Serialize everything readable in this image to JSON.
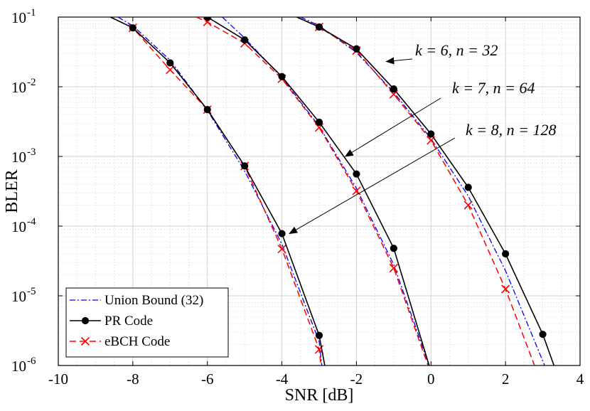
{
  "chart_data": {
    "type": "line",
    "title": "",
    "xlabel": "SNR [dB]",
    "ylabel": "BLER",
    "xlim": [
      -10,
      4
    ],
    "ylim": [
      1e-06,
      0.1
    ],
    "yscale": "log",
    "grid": true,
    "legend_position": "bottom-left",
    "x_ticks": [
      -10,
      -8,
      -6,
      -4,
      -2,
      0,
      2,
      4
    ],
    "x_tick_labels": [
      "-10",
      "-8",
      "-6",
      "-4",
      "-2",
      "0",
      "2",
      "4"
    ],
    "y_tick_labels": [
      {
        "base": "10",
        "exp": "-6"
      },
      {
        "base": "10",
        "exp": "-5"
      },
      {
        "base": "10",
        "exp": "-4"
      },
      {
        "base": "10",
        "exp": "-3"
      },
      {
        "base": "10",
        "exp": "-2"
      },
      {
        "base": "10",
        "exp": "-1"
      }
    ],
    "legend": [
      {
        "label": "Union Bound (32)",
        "series_type": "union"
      },
      {
        "label": "PR Code",
        "series_type": "pr"
      },
      {
        "label": "eBCH Code",
        "series_type": "ebch"
      }
    ],
    "series": [
      {
        "name": "PR Code",
        "group": "k=8,n=128",
        "type": "pr",
        "color": "#000000",
        "x": [
          -8.6,
          -8,
          -7,
          -6,
          -5,
          -4,
          -3,
          -2.85
        ],
        "y": [
          0.1,
          0.07,
          0.022,
          0.0047,
          0.00073,
          7.8e-05,
          2.7e-06,
          1e-06
        ]
      },
      {
        "name": "eBCH Code",
        "group": "k=8,n=128",
        "type": "ebch",
        "color": "#ff0000",
        "x": [
          -8.6,
          -8,
          -7,
          -6,
          -5,
          -4,
          -3,
          -2.95
        ],
        "y": [
          0.1,
          0.07,
          0.0175,
          0.0047,
          0.00073,
          4.7e-05,
          1.7e-06,
          1e-06
        ]
      },
      {
        "name": "Union Bound (32)",
        "group": "k=8,n=128",
        "type": "union",
        "color": "#0000ff",
        "x": [
          -8.4,
          -8,
          -7,
          -6,
          -5,
          -4,
          -3,
          -2.93
        ],
        "y": [
          0.1,
          0.075,
          0.024,
          0.0046,
          0.00062,
          5.5e-05,
          2.2e-06,
          1e-06
        ]
      },
      {
        "name": "PR Code",
        "group": "k=7,n=64",
        "type": "pr",
        "color": "#000000",
        "x": [
          -6.0,
          -5,
          -4,
          -3,
          -2,
          -1,
          -0.05
        ],
        "y": [
          0.1,
          0.047,
          0.014,
          0.0031,
          0.00056,
          4.8e-05,
          1e-06
        ]
      },
      {
        "name": "eBCH Code",
        "group": "k=7,n=64",
        "type": "ebch",
        "color": "#ff0000",
        "x": [
          -6.3,
          -6,
          -5,
          -4,
          -3,
          -2,
          -1,
          -0.08
        ],
        "y": [
          0.1,
          0.085,
          0.042,
          0.013,
          0.0026,
          0.00032,
          2.5e-05,
          1e-06
        ]
      },
      {
        "name": "Union Bound (32)",
        "group": "k=7,n=64",
        "type": "union",
        "color": "#0000ff",
        "x": [
          -5.6,
          -5,
          -4,
          -3,
          -2,
          -1,
          -0.05
        ],
        "y": [
          0.1,
          0.05,
          0.0135,
          0.0027,
          0.00035,
          2.8e-05,
          1e-06
        ]
      },
      {
        "name": "PR Code",
        "group": "k=6,n=32",
        "type": "pr",
        "color": "#000000",
        "x": [
          -3.6,
          -3,
          -2,
          -1,
          0,
          1,
          2,
          3,
          3.3
        ],
        "y": [
          0.1,
          0.072,
          0.035,
          0.0093,
          0.0021,
          0.00036,
          4e-05,
          2.8e-06,
          1e-06
        ]
      },
      {
        "name": "eBCH Code",
        "group": "k=6,n=32",
        "type": "ebch",
        "color": "#ff0000",
        "x": [
          -3.6,
          -3,
          -2,
          -1,
          0,
          1,
          2,
          2.78
        ],
        "y": [
          0.1,
          0.072,
          0.033,
          0.0078,
          0.0017,
          0.0002,
          1.25e-05,
          1e-06
        ]
      },
      {
        "name": "Union Bound (32)",
        "group": "k=6,n=32",
        "type": "union",
        "color": "#0000ff",
        "x": [
          -3.5,
          -3,
          -2,
          -1,
          0,
          1,
          2,
          3.05
        ],
        "y": [
          0.1,
          0.075,
          0.031,
          0.0083,
          0.0018,
          0.00027,
          2.3e-05,
          1e-06
        ]
      }
    ],
    "annotations": [
      {
        "text": "k = 6, n = 32",
        "target": [
          -1.2,
          0.023
        ]
      },
      {
        "text": "k = 7, n = 64",
        "target": [
          -2.3,
          0.001
        ]
      },
      {
        "text": "k = 8, n = 128",
        "target": [
          -3.8,
          7.8e-05
        ]
      }
    ]
  }
}
